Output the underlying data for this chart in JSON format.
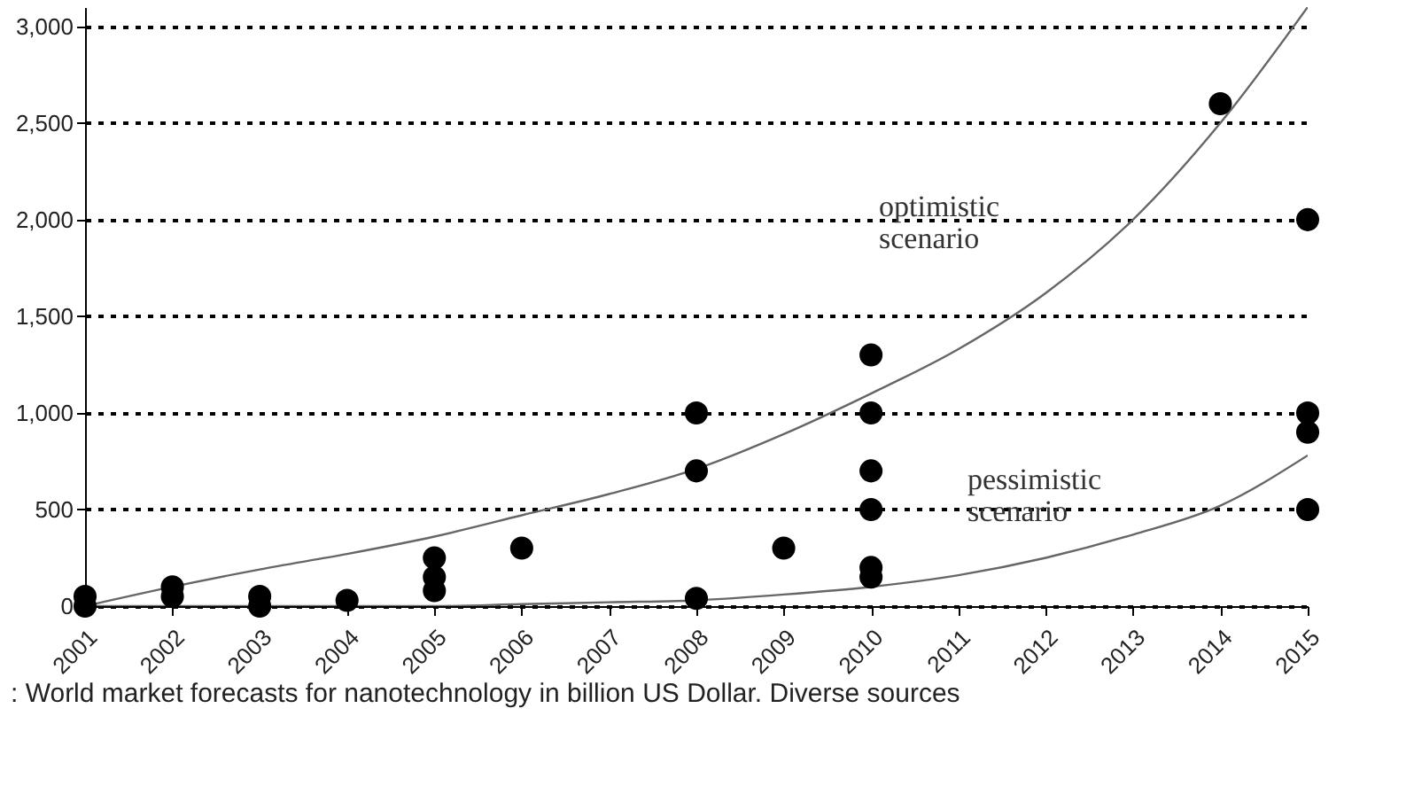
{
  "chart_data": {
    "type": "scatter",
    "x": [
      2001,
      2002,
      2003,
      2004,
      2005,
      2006,
      2007,
      2008,
      2009,
      2010,
      2011,
      2012,
      2013,
      2014,
      2015
    ],
    "series": [
      {
        "type": "line",
        "color": "#666666",
        "marker": "none",
        "values": [
          0,
          100,
          190,
          270,
          360,
          470,
          580,
          710,
          890,
          1100,
          1330,
          1620,
          2000,
          2500,
          3100
        ]
      },
      {
        "type": "line",
        "color": "#666666",
        "marker": "none",
        "values": [
          0,
          0,
          0,
          0,
          0,
          10,
          20,
          30,
          60,
          100,
          160,
          250,
          370,
          520,
          780
        ]
      },
      {
        "color": "#000000",
        "marker": "circle",
        "x": [
          2001,
          2001,
          2002,
          2002,
          2003,
          2003,
          2004,
          2005,
          2005,
          2005,
          2006,
          2008,
          2008,
          2008,
          2009,
          2010,
          2010,
          2010,
          2010,
          2010,
          2010,
          2014,
          2015,
          2015,
          2015,
          2015
        ],
        "values": [
          0,
          50,
          50,
          100,
          0,
          50,
          30,
          80,
          150,
          250,
          300,
          1000,
          700,
          40,
          300,
          1300,
          1000,
          700,
          500,
          200,
          150,
          2600,
          2000,
          1000,
          900,
          500
        ]
      }
    ],
    "xlim": [
      2001,
      2015
    ],
    "xticks": [
      2001,
      2002,
      2003,
      2004,
      2005,
      2006,
      2007,
      2008,
      2009,
      2010,
      2011,
      2012,
      2013,
      2014,
      2015
    ],
    "ylim": [
      0,
      3100
    ],
    "yticks": [
      {
        "value": 0,
        "label": "0"
      },
      {
        "value": 500,
        "label": "500"
      },
      {
        "value": 1000,
        "label": "1,000"
      },
      {
        "value": 1500,
        "label": "1,500"
      },
      {
        "value": 2000,
        "label": "2,000"
      },
      {
        "value": 2500,
        "label": "2,500"
      },
      {
        "value": 3000,
        "label": "3,000"
      }
    ],
    "grid": "y",
    "line_style": "solid",
    "annotations": [
      "optimistic\nscenario",
      "pessimistic\nscenario",
      ": World market forecasts for nanotechnology in billion US Dollar. Diverse sources"
    ]
  }
}
